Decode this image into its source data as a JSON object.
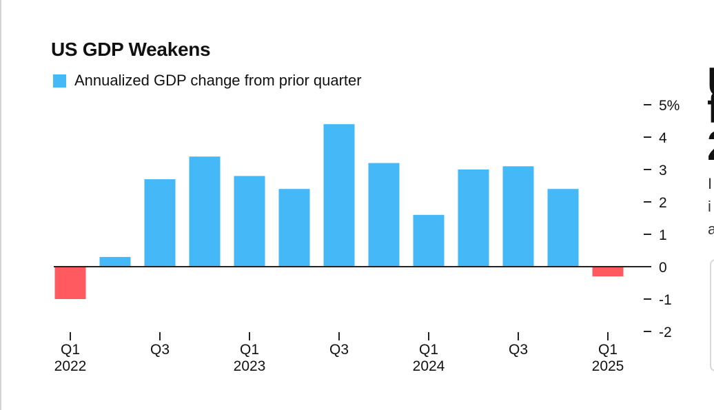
{
  "colors": {
    "positive": "#45b8f8",
    "negative": "#ff5a5f",
    "text": "#111111",
    "zero_line": "#222222",
    "tick": "#222222"
  },
  "article": {
    "headline_fragments": [
      "U",
      "f",
      "2"
    ],
    "body_fragments": [
      "I",
      "i",
      "a"
    ]
  },
  "chart_data": {
    "type": "bar",
    "title": "US GDP Weakens",
    "legend": [
      {
        "label": "Annualized GDP change from prior quarter",
        "color": "#45b8f8"
      }
    ],
    "legend_position": "top-left",
    "categories": [
      "Q1 2022",
      "Q2 2022",
      "Q3 2022",
      "Q4 2022",
      "Q1 2023",
      "Q2 2023",
      "Q3 2023",
      "Q4 2023",
      "Q1 2024",
      "Q2 2024",
      "Q3 2024",
      "Q4 2024",
      "Q1 2025"
    ],
    "series": [
      {
        "name": "Annualized GDP change from prior quarter",
        "values": [
          -1.0,
          0.3,
          2.7,
          3.4,
          2.8,
          2.4,
          4.4,
          3.2,
          1.6,
          3.0,
          3.1,
          2.4,
          -0.3
        ]
      }
    ],
    "ylim": [
      -2,
      5
    ],
    "y_ticks": [
      {
        "value": 5,
        "label": "5%"
      },
      {
        "value": 4,
        "label": "4"
      },
      {
        "value": 3,
        "label": "3"
      },
      {
        "value": 2,
        "label": "2"
      },
      {
        "value": 1,
        "label": "1"
      },
      {
        "value": 0,
        "label": "0"
      },
      {
        "value": -1,
        "label": "-1"
      },
      {
        "value": -2,
        "label": "-2"
      }
    ],
    "y_axis_side": "right",
    "x_tick_labels": [
      {
        "index": 0,
        "quarter": "Q1",
        "year": "2022"
      },
      {
        "index": 2,
        "quarter": "Q3",
        "year": ""
      },
      {
        "index": 4,
        "quarter": "Q1",
        "year": "2023"
      },
      {
        "index": 6,
        "quarter": "Q3",
        "year": ""
      },
      {
        "index": 8,
        "quarter": "Q1",
        "year": "2024"
      },
      {
        "index": 10,
        "quarter": "Q3",
        "year": ""
      },
      {
        "index": 12,
        "quarter": "Q1",
        "year": "2025"
      }
    ],
    "grid": false
  }
}
